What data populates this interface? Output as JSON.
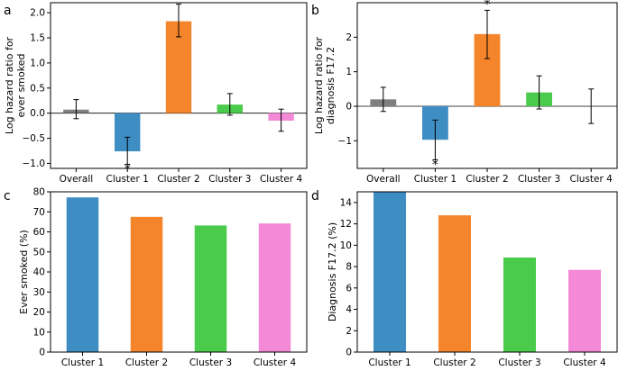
{
  "colors": {
    "Overall": "#7f7f7f",
    "Cluster 1": "#3e8dc3",
    "Cluster 2": "#f5852a",
    "Cluster 3": "#4bcb4b",
    "Cluster 4": "#f48ad7"
  },
  "chart_data": [
    {
      "panel": "a",
      "type": "bar",
      "ylabel_lines": [
        "Log hazard ratio for",
        "ever smoked"
      ],
      "categories": [
        "Overall",
        "Cluster 1",
        "Cluster 2",
        "Cluster 3",
        "Cluster 4"
      ],
      "values": [
        0.07,
        -0.76,
        1.83,
        0.17,
        -0.15
      ],
      "err_low": [
        -0.11,
        -1.02,
        1.52,
        -0.04,
        -0.36
      ],
      "err_high": [
        0.27,
        -0.48,
        2.17,
        0.39,
        0.08
      ],
      "significant": [
        "",
        "*",
        "*",
        "",
        ""
      ],
      "ylim": [
        -1.1,
        2.2
      ],
      "yticks": [
        -1.0,
        -0.5,
        0.0,
        0.5,
        1.0,
        1.5,
        2.0
      ],
      "ytick_labels": [
        "−1.0",
        "−0.5",
        "0.0",
        "0.5",
        "1.0",
        "1.5",
        "2.0"
      ]
    },
    {
      "panel": "b",
      "type": "bar",
      "ylabel_lines": [
        "Log hazard ratio for",
        "diagnosis F17.2"
      ],
      "categories": [
        "Overall",
        "Cluster 1",
        "Cluster 2",
        "Cluster 3",
        "Cluster 4"
      ],
      "values": [
        0.2,
        -0.97,
        2.09,
        0.4,
        0.0
      ],
      "err_low": [
        -0.15,
        -1.55,
        1.38,
        -0.08,
        -0.5
      ],
      "err_high": [
        0.55,
        -0.4,
        2.78,
        0.88,
        0.5
      ],
      "significant": [
        "",
        "*",
        "*",
        "",
        ""
      ],
      "ylim": [
        -1.8,
        3.0
      ],
      "yticks": [
        -1,
        0,
        1,
        2
      ],
      "ytick_labels": [
        "−1",
        "0",
        "1",
        "2"
      ]
    },
    {
      "panel": "c",
      "type": "bar",
      "ylabel": "Ever smoked (%)",
      "categories": [
        "Cluster 1",
        "Cluster 2",
        "Cluster 3",
        "Cluster 4"
      ],
      "values": [
        77.2,
        67.5,
        63.2,
        64.2
      ],
      "ylim": [
        0,
        80
      ],
      "yticks": [
        0,
        10,
        20,
        30,
        40,
        50,
        60,
        70,
        80
      ],
      "ytick_labels": [
        "0",
        "10",
        "20",
        "30",
        "40",
        "50",
        "60",
        "70",
        "80"
      ]
    },
    {
      "panel": "d",
      "type": "bar",
      "ylabel": "Diagnosis F17.2 (%)",
      "categories": [
        "Cluster 1",
        "Cluster 2",
        "Cluster 3",
        "Cluster 4"
      ],
      "values": [
        15.0,
        12.8,
        8.85,
        7.7
      ],
      "ylim": [
        0,
        15.0
      ],
      "yticks": [
        0,
        2,
        4,
        6,
        8,
        10,
        12,
        14
      ],
      "ytick_labels": [
        "0",
        "2",
        "4",
        "6",
        "8",
        "10",
        "12",
        "14"
      ]
    }
  ]
}
